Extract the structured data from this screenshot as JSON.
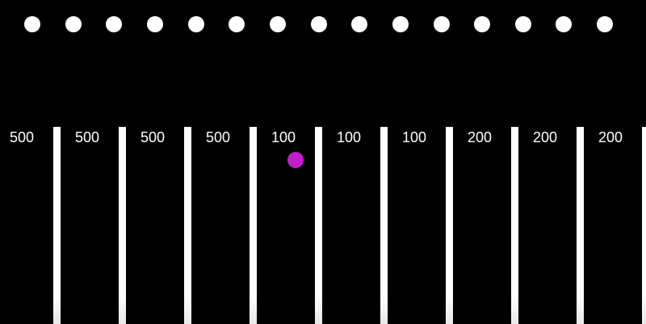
{
  "game": {
    "peg_count": 15,
    "slots": [
      {
        "value": "500"
      },
      {
        "value": "500"
      },
      {
        "value": "500"
      },
      {
        "value": "500"
      },
      {
        "value": "100"
      },
      {
        "value": "100"
      },
      {
        "value": "100"
      },
      {
        "value": "200"
      },
      {
        "value": "200"
      },
      {
        "value": "200"
      }
    ],
    "ball": {
      "color": "#c21fc9",
      "slot_index": 4
    },
    "colors": {
      "background": "#000000",
      "pegs": "#ffffff",
      "dividers": "#ffffff",
      "labels": "#ffffff"
    }
  }
}
